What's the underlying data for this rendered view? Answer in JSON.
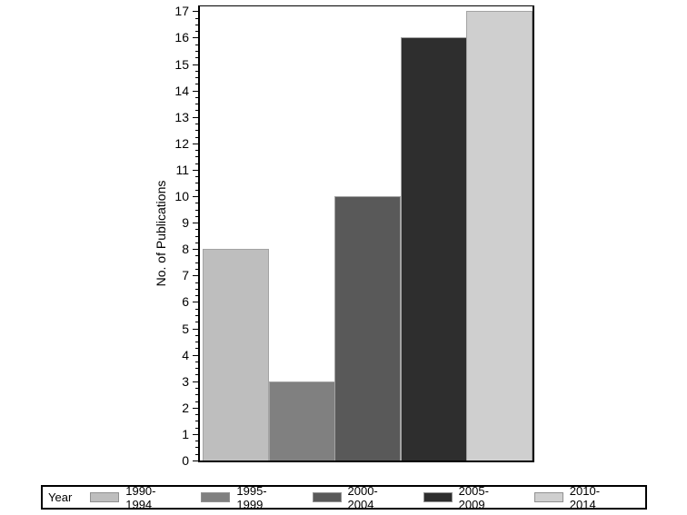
{
  "chart_data": {
    "type": "bar",
    "title": "",
    "xlabel": "",
    "ylabel": "No. of Publications",
    "legend_title": "Year",
    "legend_position": "bottom",
    "categories": [
      "1990-1994",
      "1995-1999",
      "2000-2004",
      "2005-2009",
      "2010-2014"
    ],
    "values": [
      8,
      3,
      10,
      16,
      17
    ],
    "bar_colors": [
      "#bebebe",
      "#808080",
      "#595959",
      "#2e2e2e",
      "#cfcfcf"
    ],
    "bar_outline_color": "#a3a3a3",
    "ylim": [
      0,
      17
    ],
    "yticks": [
      0,
      1,
      2,
      3,
      4,
      5,
      6,
      7,
      8,
      9,
      10,
      11,
      12,
      13,
      14,
      15,
      16,
      17
    ],
    "minor_tick_step": 0.25,
    "grid": "off",
    "frame": "on",
    "axis_color": "#000000",
    "background_color": "#ffffff"
  }
}
